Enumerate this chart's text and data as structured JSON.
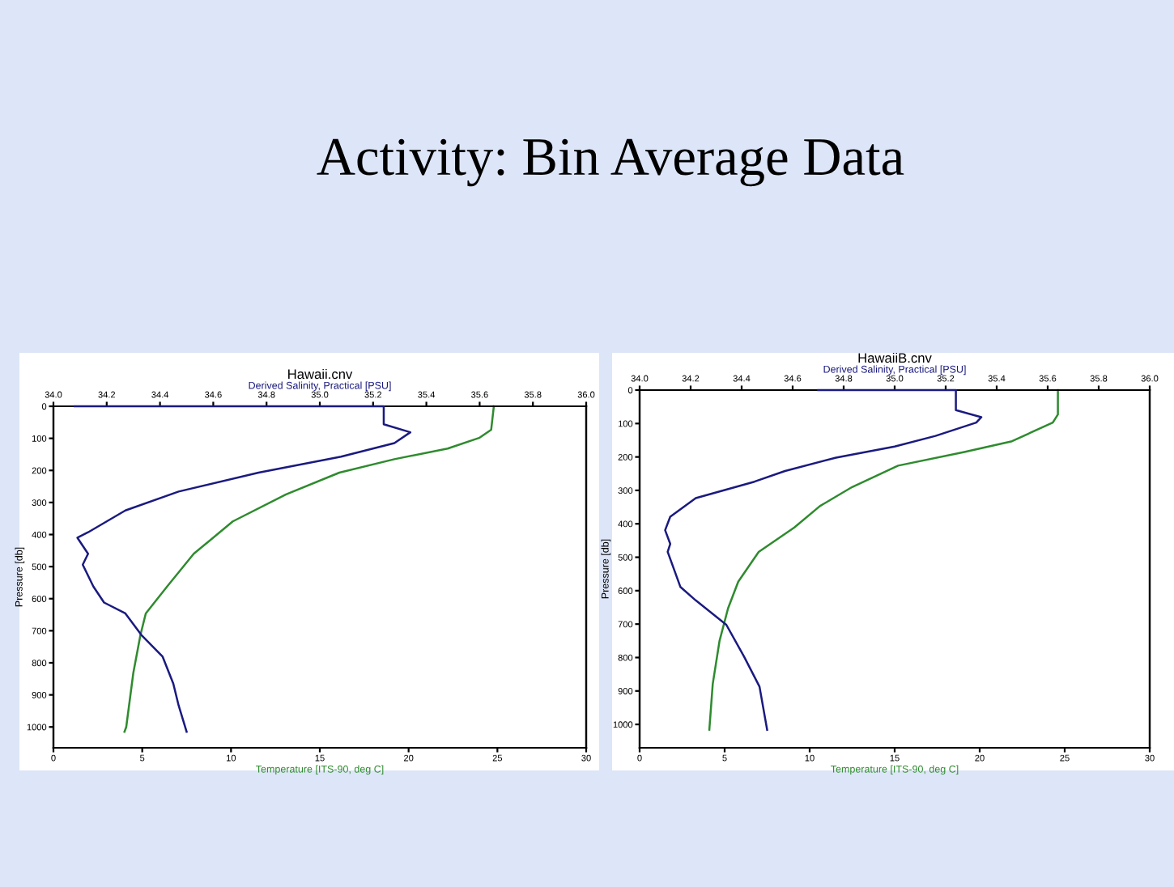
{
  "chart_data": [
    {
      "type": "line",
      "title": "Hawaii.cnv",
      "annotations": [
        "Activity: Bin Average Data"
      ],
      "xlabel": "Temperature [ITS-90, deg C]",
      "x2label": "Derived Salinity, Practical [PSU]",
      "ylabel": "Pressure [db]",
      "xlim": [
        0,
        30
      ],
      "xticks": [
        0,
        5,
        10,
        15,
        20,
        25,
        30
      ],
      "x2lim": [
        34.0,
        36.0
      ],
      "x2ticks": [
        {
          "value": 34.0,
          "label": "34.0"
        },
        34.2,
        34.4,
        34.6,
        34.8,
        {
          "value": 35.0,
          "label": "35.0"
        },
        35.2,
        35.4,
        35.6,
        35.8,
        {
          "value": 36.0,
          "label": "36.0"
        }
      ],
      "ylim": [
        1065,
        0
      ],
      "yticks": [
        0,
        100,
        200,
        300,
        400,
        500,
        600,
        700,
        800,
        900,
        1000
      ],
      "grid": false,
      "legend": false,
      "series": [
        {
          "type": "line",
          "axis": "x2",
          "color": "#1a1a80",
          "x": [
            34.08,
            35.24,
            35.24,
            35.34,
            35.28,
            35.08,
            34.77,
            34.47,
            34.27,
            34.13,
            34.09,
            34.13,
            34.11,
            34.15,
            34.19,
            34.27,
            34.33,
            34.41,
            34.45,
            34.47,
            34.5
          ],
          "values": [
            0,
            0,
            56,
            81,
            115,
            157,
            207,
            266,
            325,
            393,
            410,
            460,
            494,
            562,
            612,
            646,
            713,
            781,
            865,
            933,
            1015
          ]
        },
        {
          "type": "line",
          "color": "#2e8b2e",
          "x": [
            24.8,
            24.65,
            24.0,
            22.2,
            19.2,
            16.1,
            13.1,
            10.1,
            7.9,
            6.4,
            5.2,
            4.9,
            4.5,
            4.1,
            4.0
          ],
          "values": [
            0,
            73,
            98,
            132,
            165,
            207,
            275,
            359,
            460,
            562,
            646,
            713,
            831,
            1000,
            1015
          ]
        }
      ]
    },
    {
      "type": "line",
      "title": "HawaiiB.cnv",
      "xlabel": "Temperature [ITS-90, deg C]",
      "x2label": "Derived Salinity, Practical [PSU]",
      "ylabel": "Pressure [db]",
      "xlim": [
        0,
        30
      ],
      "xticks": [
        0,
        5,
        10,
        15,
        20,
        25,
        30
      ],
      "x2lim": [
        34.0,
        36.0
      ],
      "x2ticks": [
        {
          "value": 34.0,
          "label": "34.0"
        },
        34.2,
        34.4,
        34.6,
        34.8,
        {
          "value": 35.0,
          "label": "35.0"
        },
        35.2,
        35.4,
        35.6,
        35.8,
        {
          "value": 36.0,
          "label": "36.0"
        }
      ],
      "ylim": [
        1070,
        0
      ],
      "yticks": [
        0,
        100,
        200,
        300,
        400,
        500,
        600,
        700,
        800,
        900,
        1000
      ],
      "grid": false,
      "legend": false,
      "series": [
        {
          "type": "line",
          "axis": "x2",
          "color": "#1a1a80",
          "x": [
            34.7,
            35.24,
            35.24,
            35.24,
            35.34,
            35.32,
            35.16,
            35.0,
            34.77,
            34.57,
            34.45,
            34.22,
            34.12,
            34.1,
            34.12,
            34.11,
            34.16,
            34.22,
            34.34,
            34.41,
            34.47,
            34.5
          ],
          "values": [
            0,
            0,
            16,
            60,
            81,
            97,
            137,
            169,
            202,
            242,
            274,
            323,
            379,
            419,
            460,
            484,
            589,
            629,
            702,
            798,
            887,
            1016
          ]
        },
        {
          "type": "line",
          "color": "#2e8b2e",
          "x": [
            24.6,
            24.6,
            24.3,
            21.9,
            19.1,
            15.2,
            12.5,
            10.6,
            9.1,
            7.0,
            5.8,
            5.2,
            4.7,
            4.3,
            4.1
          ],
          "values": [
            0,
            73,
            97,
            153,
            185,
            226,
            290,
            347,
            411,
            484,
            573,
            653,
            750,
            879,
            1016
          ]
        }
      ]
    }
  ]
}
